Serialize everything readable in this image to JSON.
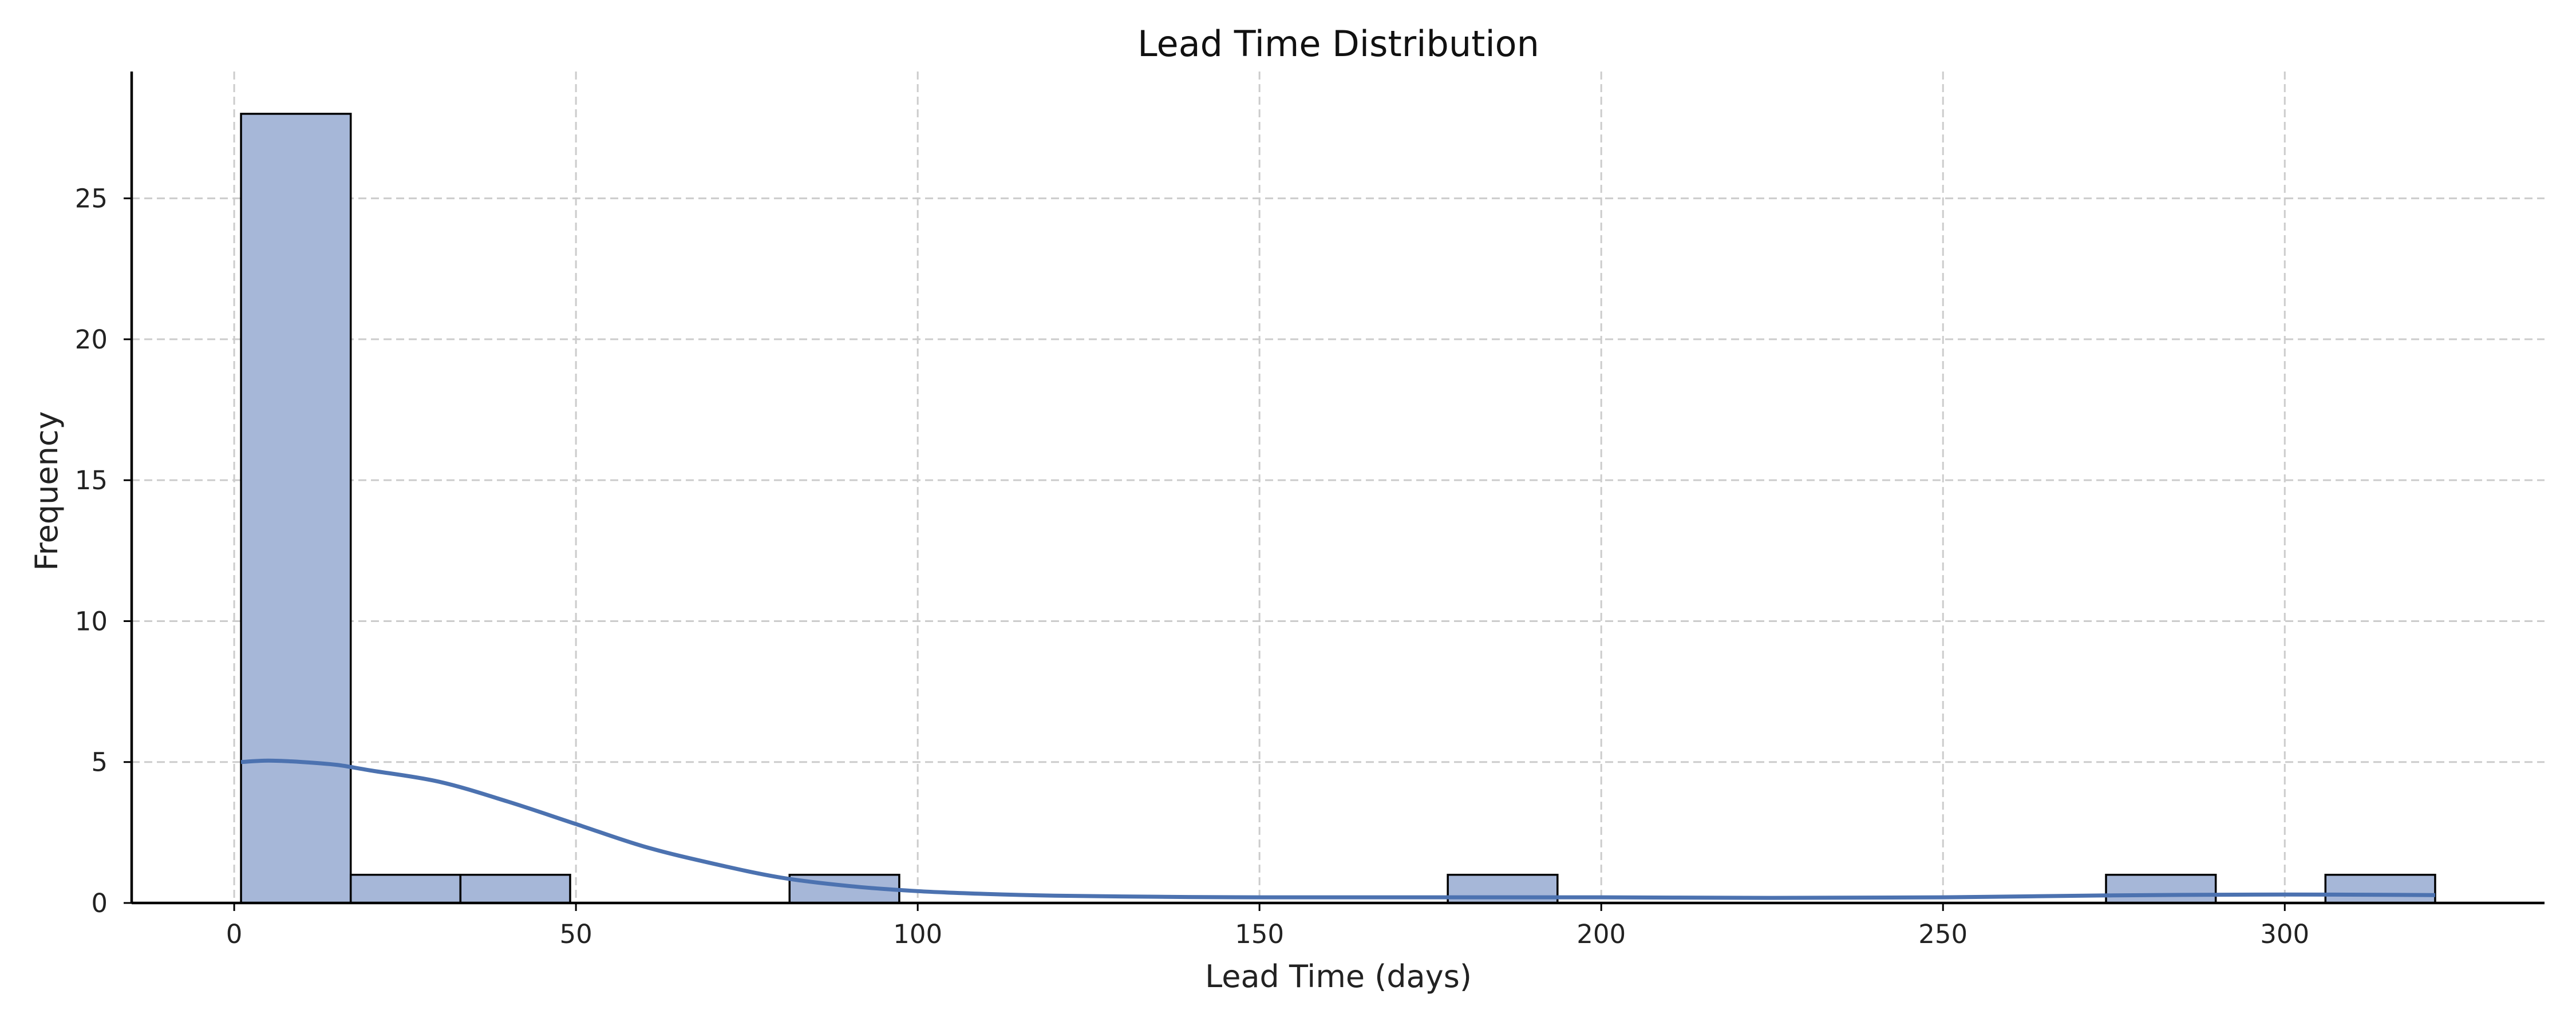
{
  "chart_data": {
    "type": "bar",
    "title": "Lead Time Distribution",
    "xlabel": "Lead Time (days)",
    "ylabel": "Frequency",
    "xlim": [
      -15,
      338
    ],
    "ylim": [
      0,
      29.5
    ],
    "xticks": [
      0,
      50,
      100,
      150,
      200,
      250,
      300
    ],
    "yticks": [
      0,
      5,
      10,
      15,
      20,
      25
    ],
    "grid": true,
    "bin_width": 16.05,
    "bins": [
      {
        "start": 1.0,
        "end": 17.05,
        "count": 28
      },
      {
        "start": 17.05,
        "end": 33.1,
        "count": 1
      },
      {
        "start": 33.1,
        "end": 49.15,
        "count": 1
      },
      {
        "start": 49.15,
        "end": 65.2,
        "count": 0
      },
      {
        "start": 65.2,
        "end": 81.25,
        "count": 0
      },
      {
        "start": 81.25,
        "end": 97.3,
        "count": 1
      },
      {
        "start": 97.3,
        "end": 113.35,
        "count": 0
      },
      {
        "start": 113.35,
        "end": 129.4,
        "count": 0
      },
      {
        "start": 129.4,
        "end": 145.45,
        "count": 0
      },
      {
        "start": 145.45,
        "end": 161.5,
        "count": 0
      },
      {
        "start": 161.5,
        "end": 177.55,
        "count": 0
      },
      {
        "start": 177.55,
        "end": 193.6,
        "count": 1
      },
      {
        "start": 193.6,
        "end": 209.65,
        "count": 0
      },
      {
        "start": 209.65,
        "end": 225.7,
        "count": 0
      },
      {
        "start": 225.7,
        "end": 241.75,
        "count": 0
      },
      {
        "start": 241.75,
        "end": 257.8,
        "count": 0
      },
      {
        "start": 257.8,
        "end": 273.85,
        "count": 0
      },
      {
        "start": 273.85,
        "end": 289.9,
        "count": 1
      },
      {
        "start": 289.9,
        "end": 305.95,
        "count": 0
      },
      {
        "start": 305.95,
        "end": 322.0,
        "count": 1
      }
    ],
    "kde": {
      "x": [
        1,
        5,
        10,
        15,
        20,
        30,
        40,
        50,
        60,
        70,
        80,
        90,
        100,
        110,
        120,
        135,
        150,
        175,
        200,
        225,
        250,
        275,
        300,
        322
      ],
      "y": [
        5.0,
        5.05,
        5.0,
        4.9,
        4.7,
        4.3,
        3.6,
        2.8,
        2.0,
        1.4,
        0.9,
        0.6,
        0.42,
        0.32,
        0.26,
        0.22,
        0.2,
        0.2,
        0.2,
        0.18,
        0.2,
        0.27,
        0.3,
        0.28
      ]
    },
    "colors": {
      "bar_fill": "#a6b7d8",
      "bar_edge": "#000000",
      "kde_line": "#4c72b0"
    }
  }
}
